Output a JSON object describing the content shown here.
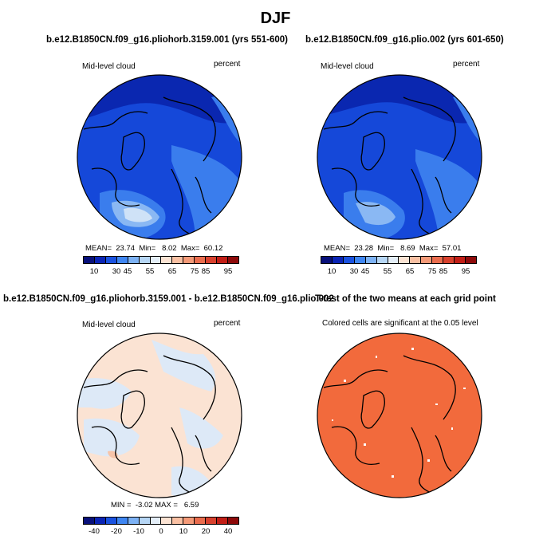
{
  "figure": {
    "title": "DJF"
  },
  "panels": {
    "top_left": {
      "header": "b.e12.B1850CN.f09_g16.pliohorb.3159.001 (yrs 551-600)",
      "variable": "Mid-level cloud",
      "units": "percent",
      "stats": "MEAN=  23.74  Min=   8.02  Max=  60.12"
    },
    "top_right": {
      "header": "b.e12.B1850CN.f09_g16.plio.002 (yrs 601-650)",
      "variable": "Mid-level cloud",
      "units": "percent",
      "stats": "MEAN=  23.28  Min=   8.69  Max=  57.01"
    },
    "bottom_left": {
      "header": "b.e12.B1850CN.f09_g16.pliohorb.3159.001 - b.e12.B1850CN.f09_g16.plio.002",
      "variable": "Mid-level cloud",
      "units": "percent",
      "stats": "MIN =  -3.02 MAX =   6.59"
    },
    "bottom_right": {
      "header": "T-test of the two means at each grid point",
      "note": "Colored cells are significant at the 0.05 level"
    }
  },
  "colorbars": {
    "abs": {
      "ticks": [
        "10",
        "30",
        "45",
        "55",
        "65",
        "75",
        "85",
        "95"
      ],
      "colors": [
        "#08107a",
        "#0a24b5",
        "#1a52e0",
        "#3f86f2",
        "#7db2f5",
        "#b6d6f5",
        "#e4eef8",
        "#fbe3d3",
        "#f9c0a3",
        "#f49a78",
        "#ea6d4e",
        "#d8412e",
        "#c21e16",
        "#8e0a0a"
      ]
    },
    "diff": {
      "ticks": [
        "-40",
        "-20",
        "-10",
        "0",
        "10",
        "20",
        "40"
      ],
      "colors": [
        "#08107a",
        "#0a24b5",
        "#1a52e0",
        "#3f86f2",
        "#7db2f5",
        "#b6d6f5",
        "#e4eef8",
        "#fbe3d3",
        "#f9c0a3",
        "#f49a78",
        "#ea6d4e",
        "#d8412e",
        "#c21e16",
        "#8e0a0a"
      ]
    }
  },
  "map_colors": {
    "abs_base": "#1548d9",
    "abs_dark": "#0a27b0",
    "abs_light": "#3a7ded",
    "abs_lighter": "#8ab8f3",
    "abs_lightest": "#cfe2f7",
    "diff_pos": "#fbe3d3",
    "diff_neg": "#dde9f7",
    "diff_pos2": "#f7c4a9",
    "ttest": "#f26a3c"
  }
}
